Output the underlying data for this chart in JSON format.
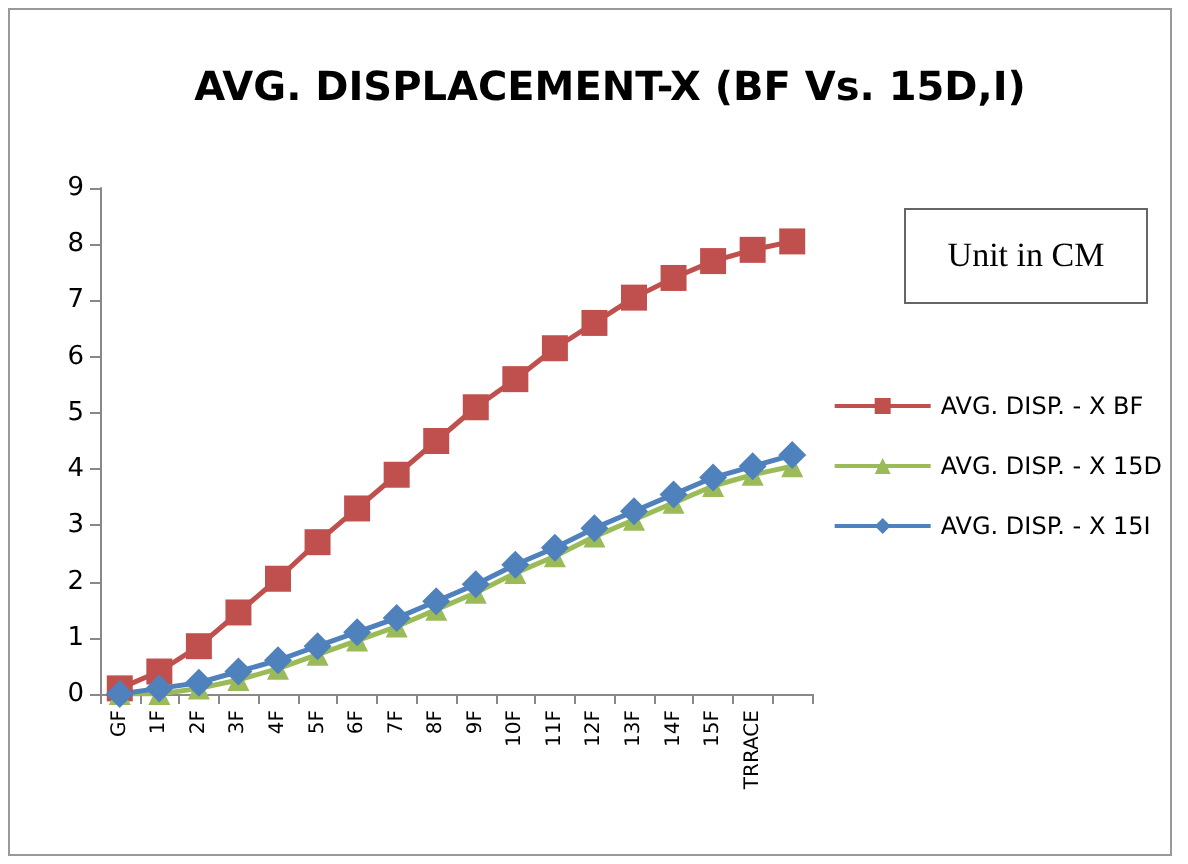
{
  "chart_data": {
    "type": "line",
    "title": "AVG. DISPLACEMENT-X (BF Vs. 15D,I)",
    "annotations": [
      "Unit in CM"
    ],
    "categories": [
      "GF",
      "1F",
      "2F",
      "3F",
      "4F",
      "5F",
      "6F",
      "7F",
      "8F",
      "9F",
      "10F",
      "11F",
      "12F",
      "13F",
      "14F",
      "15F",
      "TRRACE",
      null
    ],
    "series": [
      {
        "name": "AVG. DISP. - X BF",
        "color": "#c0504d",
        "marker": "square",
        "values": [
          0.1,
          0.4,
          0.85,
          1.45,
          2.05,
          2.7,
          3.3,
          3.9,
          4.5,
          5.1,
          5.6,
          6.15,
          6.6,
          7.05,
          7.4,
          7.7,
          7.9,
          8.05
        ]
      },
      {
        "name": "AVG. DISP. - X 15D",
        "color": "#9bbb59",
        "marker": "triangle",
        "values": [
          0,
          0,
          0.1,
          0.25,
          0.45,
          0.7,
          0.95,
          1.2,
          1.5,
          1.8,
          2.15,
          2.45,
          2.8,
          3.1,
          3.4,
          3.7,
          3.9,
          4.05
        ]
      },
      {
        "name": "AVG. DISP. - X 15I",
        "color": "#4f81bd",
        "marker": "diamond",
        "values": [
          0,
          0.1,
          0.2,
          0.4,
          0.6,
          0.85,
          1.1,
          1.35,
          1.65,
          1.95,
          2.3,
          2.6,
          2.95,
          3.25,
          3.55,
          3.85,
          4.05,
          4.25
        ]
      }
    ],
    "ylim": [
      0,
      9
    ],
    "yticks": [
      0,
      1,
      2,
      3,
      4,
      5,
      6,
      7,
      8,
      9
    ],
    "grid": false,
    "legend": "right"
  }
}
